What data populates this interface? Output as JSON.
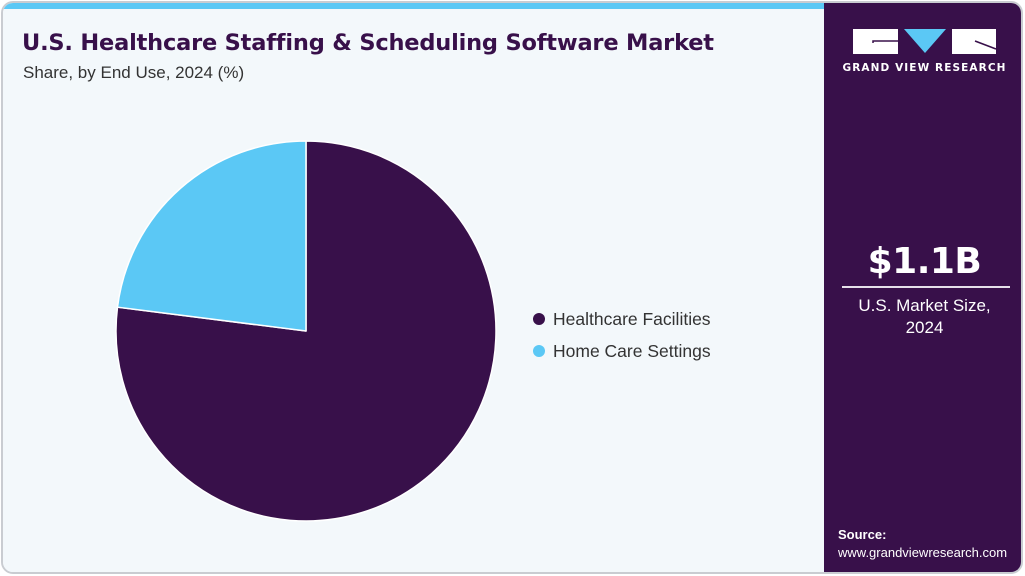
{
  "header": {
    "title": "U.S. Healthcare Staffing & Scheduling Software Market",
    "subtitle": "Share, by End Use, 2024 (%)"
  },
  "colors": {
    "healthcare_facilities": "#38104a",
    "home_care_settings": "#5bc8f5",
    "accent_bar": "#5bc8f5",
    "panel": "#38104a",
    "background": "#f3f8fb"
  },
  "legend": {
    "items": [
      {
        "label": "Healthcare Facilities",
        "color": "#38104a"
      },
      {
        "label": "Home Care Settings",
        "color": "#5bc8f5"
      }
    ]
  },
  "sidebar": {
    "brand": "GRAND VIEW RESEARCH",
    "market_value": "$1.1B",
    "market_label_line1": "U.S. Market Size,",
    "market_label_line2": "2024",
    "source_title": "Source:",
    "source_url": "www.grandviewresearch.com"
  },
  "chart_data": {
    "type": "pie",
    "title": "U.S. Healthcare Staffing & Scheduling Software Market",
    "subtitle": "Share, by End Use, 2024 (%)",
    "categories": [
      "Healthcare Facilities",
      "Home Care Settings"
    ],
    "values": [
      77,
      23
    ],
    "colors": [
      "#38104a",
      "#5bc8f5"
    ],
    "start_angle": "12 o'clock, Healthcare Facilities clockwise",
    "legend_position": "right",
    "data_labels": false
  }
}
